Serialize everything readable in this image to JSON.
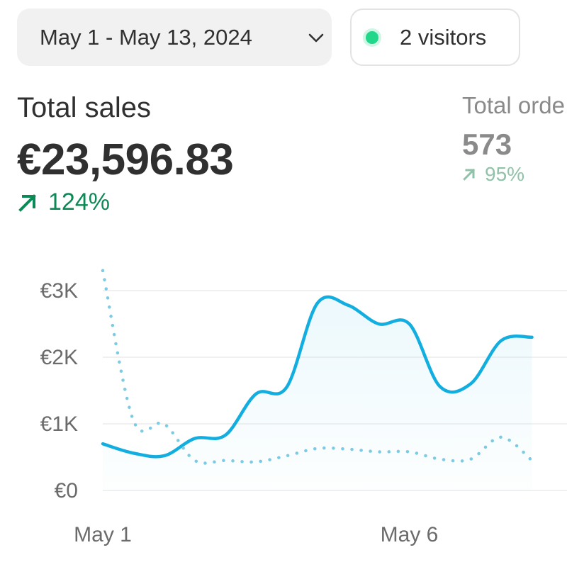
{
  "date_range": {
    "label": "May 1 - May 13, 2024",
    "icon": "chevron-down-icon"
  },
  "visitors": {
    "label": "2 visitors",
    "status_color": "#22d68a"
  },
  "total_sales": {
    "label": "Total sales",
    "value": "€23,596.83",
    "change": "124%",
    "change_direction": "up",
    "color": "#0c8a56"
  },
  "total_orders": {
    "label": "Total orde",
    "value": "573",
    "change": "95%",
    "change_direction": "up"
  },
  "chart_data": {
    "type": "line",
    "x_tick_labels": [
      "May 1",
      "May 6"
    ],
    "y_tick_labels": [
      "€0",
      "€1K",
      "€2K",
      "€3K"
    ],
    "ylim": [
      0,
      3500
    ],
    "series": [
      {
        "style": "solid",
        "color": "#13aee0",
        "x": [
          1,
          1.5,
          2,
          2.5,
          3,
          3.5,
          4,
          4.5,
          5,
          5.5,
          6,
          6.5,
          7,
          7.5,
          8
        ],
        "values": [
          700,
          560,
          520,
          780,
          830,
          1450,
          1550,
          2810,
          2780,
          2500,
          2500,
          1560,
          1600,
          2250,
          2300
        ]
      },
      {
        "style": "dotted",
        "color": "#7ccbe3",
        "x": [
          1,
          1.5,
          2,
          2.5,
          3,
          3.5,
          4,
          4.5,
          5,
          5.5,
          6,
          6.5,
          7,
          7.5,
          8
        ],
        "values": [
          3300,
          1050,
          1000,
          450,
          450,
          430,
          520,
          630,
          620,
          580,
          580,
          470,
          470,
          800,
          450
        ]
      }
    ],
    "grid": true
  }
}
